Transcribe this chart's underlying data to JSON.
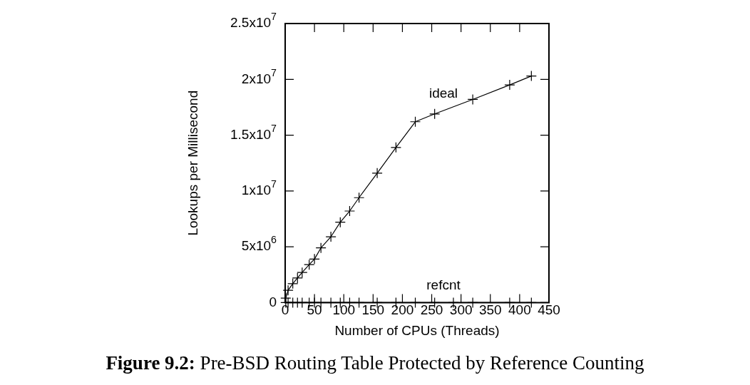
{
  "chart_data": {
    "type": "line",
    "title": "Figure 9.2: Pre-BSD Routing Table Protected by Reference Counting",
    "xlabel": "Number of CPUs (Threads)",
    "ylabel": "Lookups per Millisecond",
    "series": [
      {
        "name": "ideal",
        "color": "#000000",
        "x": [
          1,
          5,
          13,
          21,
          29,
          41,
          50,
          61,
          78,
          94,
          110,
          126,
          157,
          189,
          222,
          255,
          320,
          383,
          420
        ],
        "values": [
          400000,
          1100000,
          1700000,
          2200000,
          2700000,
          3400000,
          3900000,
          4900000,
          5900000,
          7200000,
          8200000,
          9400000,
          11600000,
          13900000,
          16200000,
          16900000,
          18200000,
          19500000,
          20300000
        ]
      },
      {
        "name": "refcnt",
        "color": "#000000",
        "x": [
          1,
          5,
          13,
          21,
          29,
          41,
          50,
          61,
          78,
          94,
          110,
          126,
          157,
          189,
          222,
          255,
          287,
          320,
          383,
          420
        ],
        "values": [
          0,
          0,
          0,
          0,
          0,
          0,
          0,
          0,
          0,
          0,
          0,
          0,
          0,
          0,
          0,
          0,
          0,
          0,
          0,
          0
        ]
      }
    ],
    "xlim": [
      0,
      450
    ],
    "xticks": [
      0,
      50,
      100,
      150,
      200,
      250,
      300,
      350,
      400,
      450
    ],
    "ylim": [
      0,
      25000000
    ],
    "yticks": [
      0,
      {
        "value": 5000000,
        "label": "5x10$^{6}$"
      },
      {
        "value": 10000000,
        "label": "1x10$^{7}$"
      },
      {
        "value": 15000000,
        "label": "1.5x10$^{7}$"
      },
      {
        "value": 20000000,
        "label": "2x10$^{7}$"
      },
      {
        "value": 25000000,
        "label": "2.5x10$^{7}$"
      }
    ],
    "grid": false,
    "legend": false,
    "marker": "cross",
    "line_style": "solid"
  }
}
